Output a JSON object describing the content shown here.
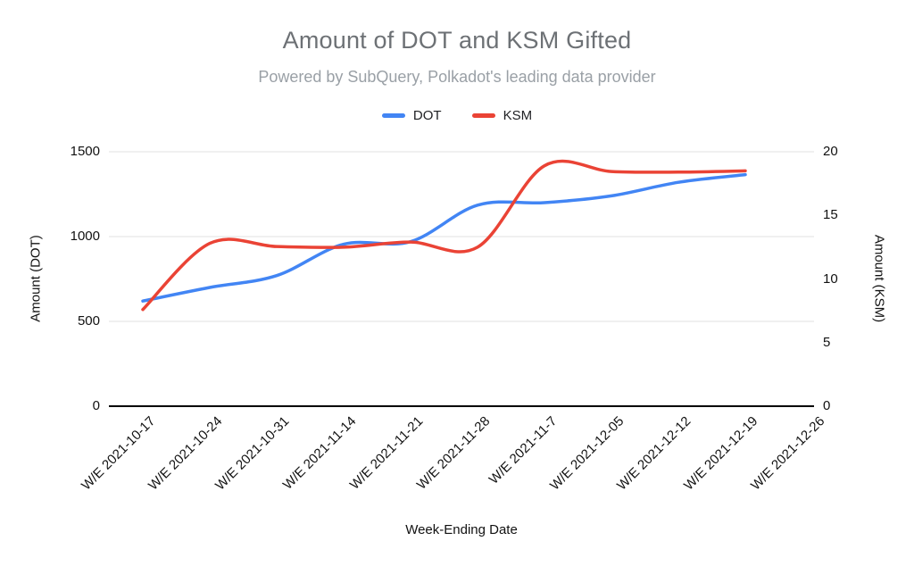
{
  "chart_data": {
    "type": "line",
    "title": "Amount of DOT and KSM Gifted",
    "subtitle": "Powered by SubQuery, Polkadot's leading data provider",
    "xlabel": "Week-Ending Date",
    "ylabel_left": "Amount (DOT)",
    "ylabel_right": "Amount (KSM)",
    "categories": [
      "W/E 2021-10-17",
      "W/E 2021-10-24",
      "W/E 2021-10-31",
      "W/E 2021-11-14",
      "W/E 2021-11-21",
      "W/E 2021-11-28",
      "W/E 2021-11-7",
      "W/E 2021-12-05",
      "W/E 2021-12-12",
      "W/E 2021-12-19",
      "W/E 2021-12-26"
    ],
    "series": [
      {
        "name": "DOT",
        "axis": "left",
        "color": "#4285f4",
        "values": [
          620,
          700,
          770,
          955,
          970,
          1185,
          1200,
          1240,
          1320,
          1365,
          null
        ]
      },
      {
        "name": "KSM",
        "axis": "right",
        "color": "#ea4335",
        "values": [
          7.6,
          12.8,
          12.55,
          12.5,
          12.9,
          12.5,
          18.9,
          18.45,
          18.4,
          18.5,
          null
        ]
      }
    ],
    "left_axis": {
      "min": 0,
      "max": 1500,
      "ticks": [
        0,
        500,
        1000,
        1500
      ]
    },
    "right_axis": {
      "min": 0,
      "max": 20,
      "ticks": [
        0,
        5,
        10,
        15,
        20
      ]
    },
    "grid": true,
    "smooth": true,
    "legend_position": "top"
  }
}
